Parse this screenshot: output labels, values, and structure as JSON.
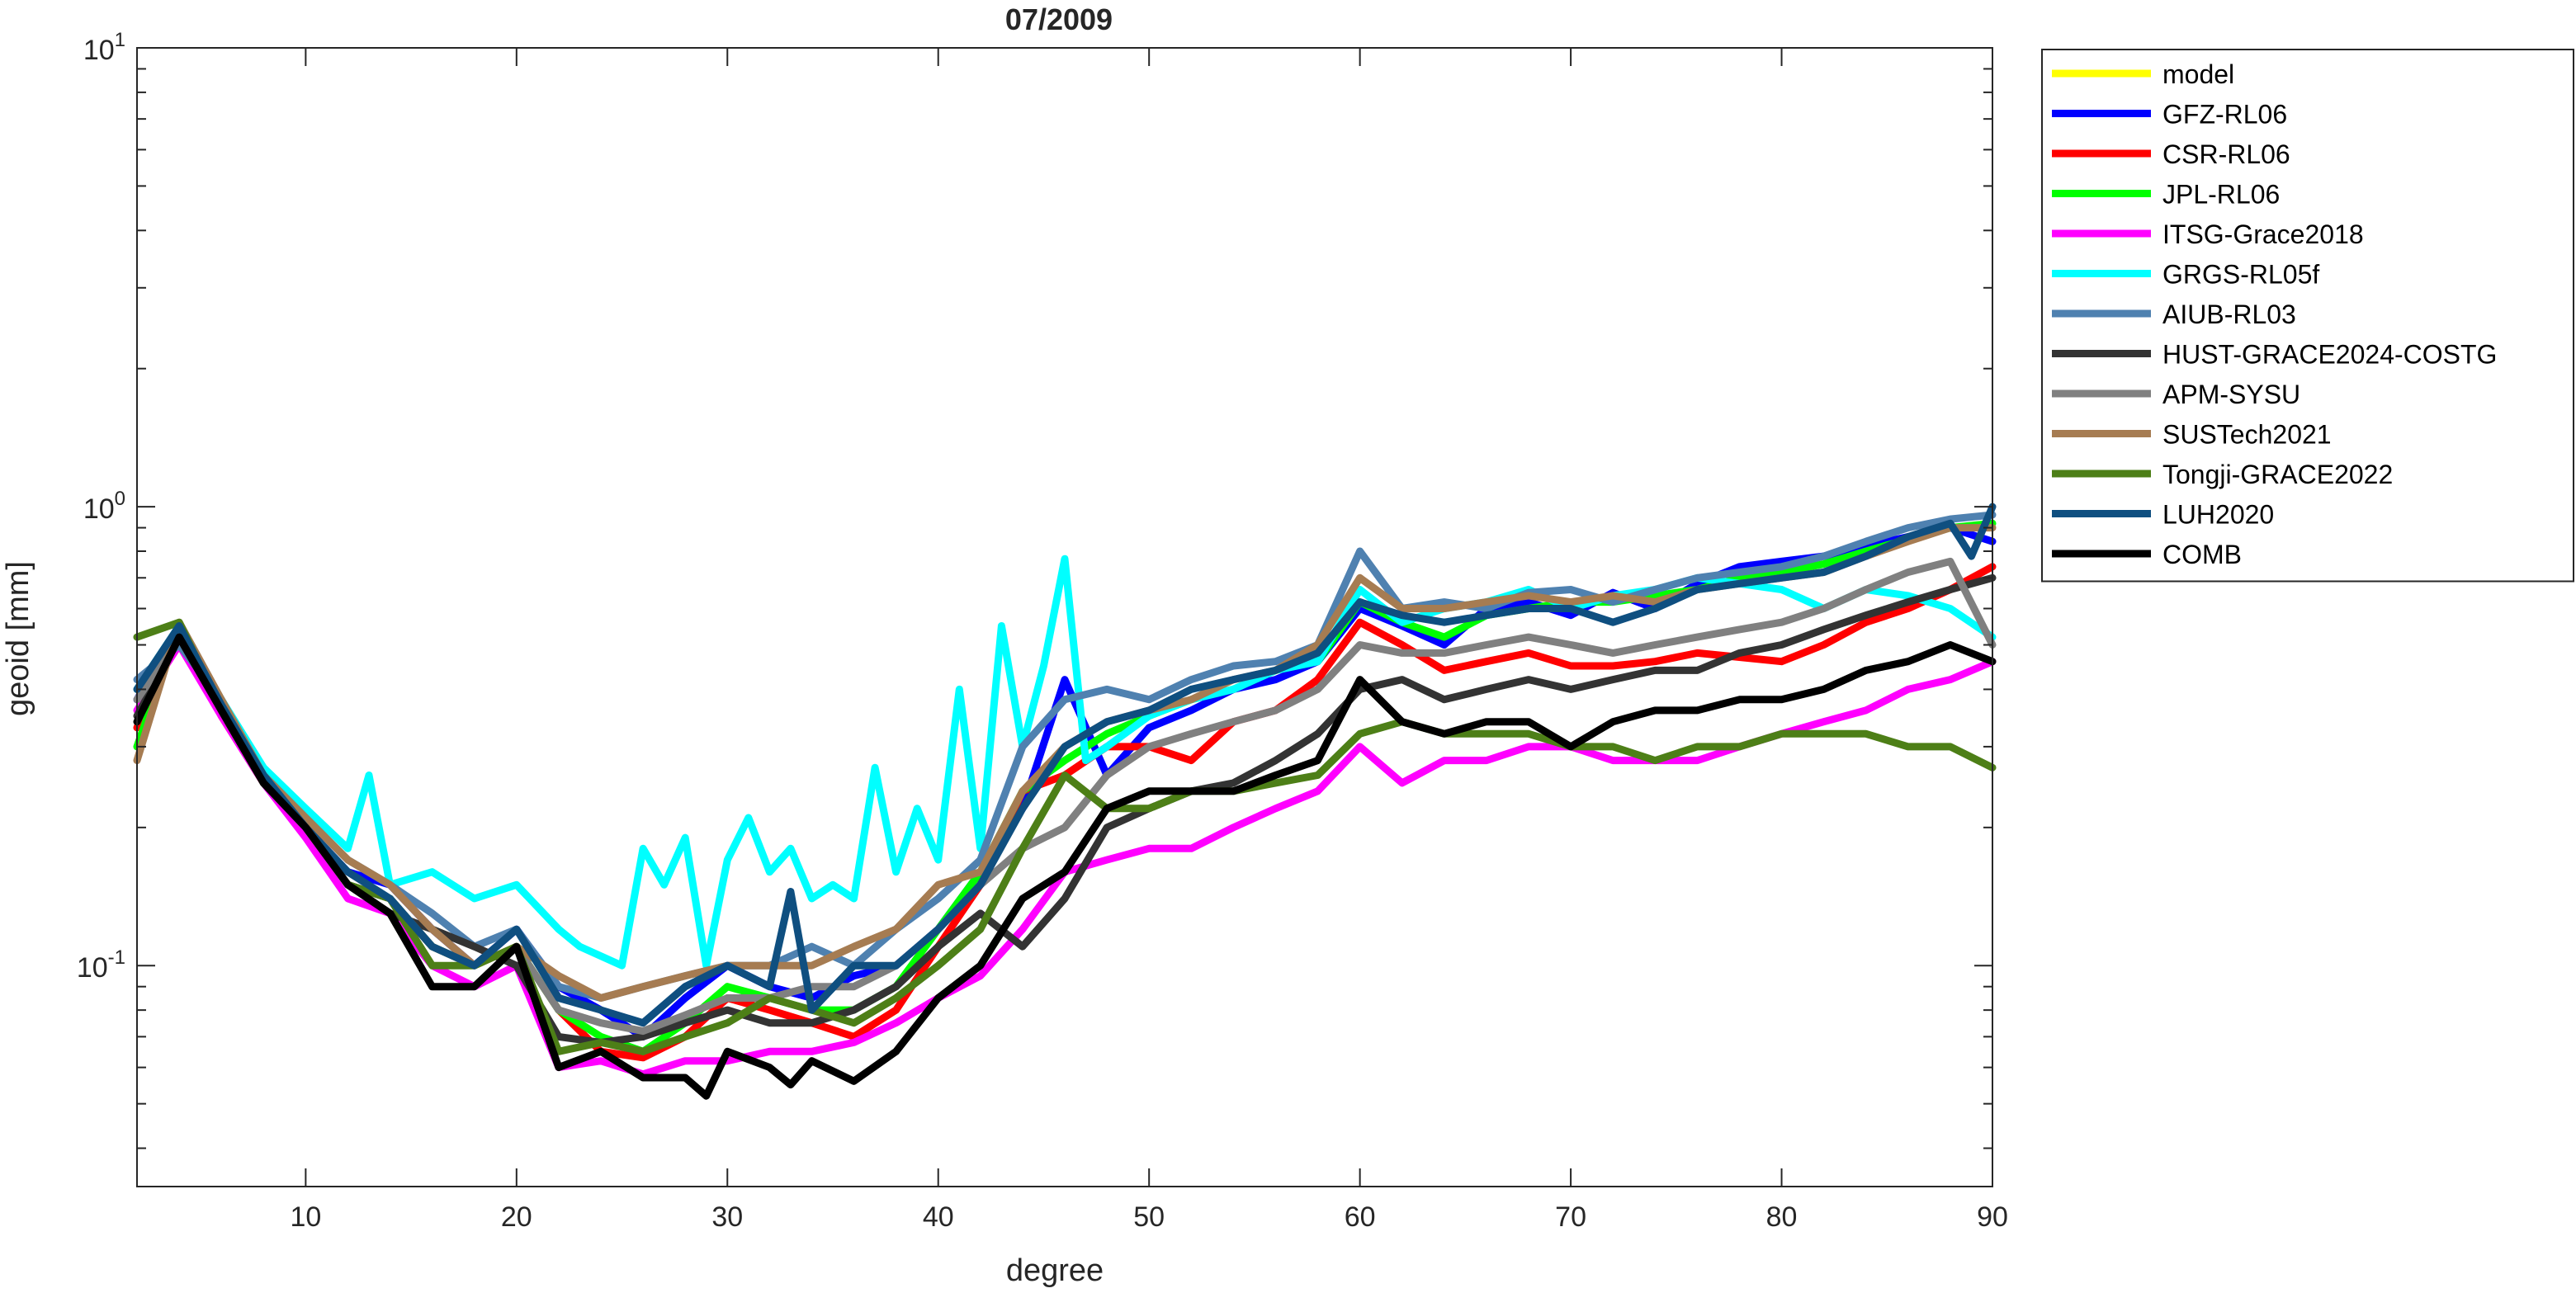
{
  "chart_data": {
    "type": "line",
    "title": "07/2009",
    "xlabel": "degree",
    "ylabel": "geoid [mm]",
    "xlim": [
      2,
      90
    ],
    "ylim": [
      0.033,
      10
    ],
    "yscale": "log",
    "grid": false,
    "legend_position": "outside-top-right",
    "xticks": [
      10,
      20,
      30,
      40,
      50,
      60,
      70,
      80,
      90
    ],
    "yticks": [
      {
        "value": 0.1,
        "base": "10",
        "exp": "-1"
      },
      {
        "value": 1,
        "base": "10",
        "exp": "0"
      },
      {
        "value": 10,
        "base": "10",
        "exp": "1"
      }
    ],
    "series": [
      {
        "name": "model",
        "color": "#FFFF00",
        "x": [],
        "y": []
      },
      {
        "name": "GFZ-RL06",
        "color": "#0000FF",
        "x": [
          2,
          4,
          6,
          8,
          10,
          12,
          14,
          16,
          18,
          20,
          22,
          24,
          26,
          28,
          30,
          32,
          34,
          36,
          38,
          40,
          42,
          44,
          46,
          48,
          50,
          52,
          54,
          56,
          58,
          60,
          62,
          64,
          66,
          68,
          70,
          72,
          74,
          76,
          78,
          80,
          82,
          84,
          86,
          88,
          90
        ],
        "y": [
          0.38,
          0.55,
          0.36,
          0.25,
          0.2,
          0.16,
          0.15,
          0.12,
          0.1,
          0.12,
          0.09,
          0.08,
          0.07,
          0.085,
          0.1,
          0.09,
          0.085,
          0.095,
          0.1,
          0.12,
          0.16,
          0.22,
          0.42,
          0.26,
          0.33,
          0.36,
          0.4,
          0.42,
          0.46,
          0.6,
          0.55,
          0.5,
          0.6,
          0.62,
          0.58,
          0.65,
          0.6,
          0.68,
          0.74,
          0.76,
          0.78,
          0.82,
          0.86,
          0.9,
          0.84
        ]
      },
      {
        "name": "CSR-RL06",
        "color": "#FF0000",
        "x": [
          2,
          4,
          6,
          8,
          10,
          12,
          14,
          16,
          18,
          20,
          22,
          24,
          26,
          28,
          30,
          32,
          34,
          36,
          38,
          40,
          42,
          44,
          46,
          48,
          50,
          52,
          54,
          56,
          58,
          60,
          62,
          64,
          66,
          68,
          70,
          72,
          74,
          76,
          78,
          80,
          82,
          84,
          86,
          88,
          90
        ],
        "y": [
          0.33,
          0.55,
          0.35,
          0.25,
          0.2,
          0.15,
          0.14,
          0.11,
          0.1,
          0.11,
          0.08,
          0.065,
          0.063,
          0.07,
          0.085,
          0.08,
          0.075,
          0.07,
          0.08,
          0.11,
          0.15,
          0.24,
          0.26,
          0.3,
          0.3,
          0.28,
          0.34,
          0.36,
          0.42,
          0.56,
          0.5,
          0.44,
          0.46,
          0.48,
          0.45,
          0.45,
          0.46,
          0.48,
          0.47,
          0.46,
          0.5,
          0.56,
          0.6,
          0.66,
          0.74
        ]
      },
      {
        "name": "JPL-RL06",
        "color": "#00FF00",
        "x": [
          2,
          4,
          6,
          8,
          10,
          12,
          14,
          16,
          18,
          20,
          22,
          24,
          26,
          28,
          30,
          32,
          34,
          36,
          38,
          40,
          42,
          44,
          46,
          48,
          50,
          52,
          54,
          56,
          58,
          60,
          62,
          64,
          66,
          68,
          70,
          72,
          74,
          76,
          78,
          80,
          82,
          84,
          86,
          88,
          90
        ],
        "y": [
          0.3,
          0.55,
          0.36,
          0.25,
          0.2,
          0.15,
          0.14,
          0.11,
          0.1,
          0.11,
          0.08,
          0.07,
          0.065,
          0.075,
          0.09,
          0.085,
          0.08,
          0.08,
          0.09,
          0.12,
          0.16,
          0.24,
          0.28,
          0.32,
          0.35,
          0.38,
          0.4,
          0.44,
          0.46,
          0.62,
          0.56,
          0.52,
          0.58,
          0.6,
          0.62,
          0.62,
          0.64,
          0.66,
          0.7,
          0.72,
          0.75,
          0.8,
          0.85,
          0.9,
          0.92
        ]
      },
      {
        "name": "ITSG-Grace2018",
        "color": "#FF00FF",
        "x": [
          2,
          4,
          6,
          8,
          10,
          12,
          14,
          16,
          18,
          20,
          22,
          24,
          26,
          28,
          30,
          32,
          34,
          36,
          38,
          40,
          42,
          44,
          46,
          48,
          50,
          52,
          54,
          56,
          58,
          60,
          62,
          64,
          66,
          68,
          70,
          72,
          74,
          76,
          78,
          80,
          82,
          84,
          86,
          88,
          90
        ],
        "y": [
          0.36,
          0.5,
          0.35,
          0.25,
          0.19,
          0.14,
          0.13,
          0.1,
          0.09,
          0.1,
          0.06,
          0.062,
          0.058,
          0.062,
          0.062,
          0.065,
          0.065,
          0.068,
          0.075,
          0.085,
          0.095,
          0.12,
          0.16,
          0.17,
          0.18,
          0.18,
          0.2,
          0.22,
          0.24,
          0.3,
          0.25,
          0.28,
          0.28,
          0.3,
          0.3,
          0.28,
          0.28,
          0.28,
          0.3,
          0.32,
          0.34,
          0.36,
          0.4,
          0.42,
          0.46
        ]
      },
      {
        "name": "GRGS-RL05f",
        "color": "#00FFFF",
        "x": [
          2,
          4,
          6,
          8,
          10,
          12,
          13,
          14,
          16,
          18,
          20,
          22,
          23,
          25,
          26,
          27,
          28,
          29,
          30,
          31,
          32,
          33,
          34,
          35,
          36,
          37,
          38,
          39,
          40,
          41,
          42,
          43,
          44,
          45,
          46,
          47,
          48,
          50,
          52,
          54,
          56,
          58,
          60,
          62,
          64,
          66,
          68,
          70,
          72,
          74,
          76,
          78,
          80,
          82,
          84,
          86,
          88,
          90
        ],
        "y": [
          0.4,
          0.55,
          0.38,
          0.27,
          0.22,
          0.18,
          0.26,
          0.15,
          0.16,
          0.14,
          0.15,
          0.12,
          0.11,
          0.1,
          0.18,
          0.15,
          0.19,
          0.1,
          0.17,
          0.21,
          0.16,
          0.18,
          0.14,
          0.15,
          0.14,
          0.27,
          0.16,
          0.22,
          0.17,
          0.4,
          0.18,
          0.55,
          0.3,
          0.45,
          0.77,
          0.28,
          0.3,
          0.35,
          0.38,
          0.4,
          0.44,
          0.46,
          0.66,
          0.56,
          0.6,
          0.62,
          0.66,
          0.6,
          0.64,
          0.66,
          0.7,
          0.68,
          0.66,
          0.6,
          0.66,
          0.64,
          0.6,
          0.52
        ]
      },
      {
        "name": "AIUB-RL03",
        "color": "#4F81B0",
        "x": [
          2,
          4,
          6,
          8,
          10,
          12,
          14,
          16,
          18,
          20,
          22,
          24,
          26,
          28,
          30,
          32,
          34,
          36,
          38,
          40,
          42,
          44,
          46,
          48,
          50,
          52,
          54,
          56,
          58,
          60,
          62,
          64,
          66,
          68,
          70,
          72,
          74,
          76,
          78,
          80,
          82,
          84,
          86,
          88,
          90
        ],
        "y": [
          0.42,
          0.5,
          0.38,
          0.26,
          0.21,
          0.17,
          0.15,
          0.13,
          0.11,
          0.12,
          0.09,
          0.085,
          0.09,
          0.095,
          0.1,
          0.1,
          0.11,
          0.1,
          0.12,
          0.14,
          0.17,
          0.3,
          0.38,
          0.4,
          0.38,
          0.42,
          0.45,
          0.46,
          0.5,
          0.8,
          0.6,
          0.62,
          0.6,
          0.65,
          0.66,
          0.62,
          0.66,
          0.7,
          0.72,
          0.74,
          0.78,
          0.84,
          0.9,
          0.94,
          0.96
        ]
      },
      {
        "name": "HUST-GRACE2024-COSTG",
        "color": "#333333",
        "x": [
          2,
          4,
          6,
          8,
          10,
          12,
          14,
          16,
          18,
          20,
          22,
          24,
          26,
          28,
          30,
          32,
          34,
          36,
          38,
          40,
          42,
          44,
          46,
          48,
          50,
          52,
          54,
          56,
          58,
          60,
          62,
          64,
          66,
          68,
          70,
          72,
          74,
          76,
          78,
          80,
          82,
          84,
          86,
          88,
          90
        ],
        "y": [
          0.35,
          0.52,
          0.36,
          0.25,
          0.2,
          0.15,
          0.13,
          0.12,
          0.11,
          0.1,
          0.07,
          0.068,
          0.07,
          0.075,
          0.08,
          0.075,
          0.075,
          0.08,
          0.09,
          0.11,
          0.13,
          0.11,
          0.14,
          0.2,
          0.22,
          0.24,
          0.25,
          0.28,
          0.32,
          0.4,
          0.42,
          0.38,
          0.4,
          0.42,
          0.4,
          0.42,
          0.44,
          0.44,
          0.48,
          0.5,
          0.54,
          0.58,
          0.62,
          0.66,
          0.7
        ]
      },
      {
        "name": "APM-SYSU",
        "color": "#808080",
        "x": [
          2,
          4,
          6,
          8,
          10,
          12,
          14,
          16,
          18,
          20,
          22,
          24,
          26,
          28,
          30,
          32,
          34,
          36,
          38,
          40,
          42,
          44,
          46,
          48,
          50,
          52,
          54,
          56,
          58,
          60,
          62,
          64,
          66,
          68,
          70,
          72,
          74,
          76,
          78,
          80,
          82,
          84,
          86,
          88,
          90
        ],
        "y": [
          0.38,
          0.52,
          0.36,
          0.26,
          0.2,
          0.15,
          0.14,
          0.11,
          0.1,
          0.11,
          0.08,
          0.075,
          0.072,
          0.078,
          0.085,
          0.085,
          0.09,
          0.09,
          0.1,
          0.12,
          0.15,
          0.18,
          0.2,
          0.26,
          0.3,
          0.32,
          0.34,
          0.36,
          0.4,
          0.5,
          0.48,
          0.48,
          0.5,
          0.52,
          0.5,
          0.48,
          0.5,
          0.52,
          0.54,
          0.56,
          0.6,
          0.66,
          0.72,
          0.76,
          0.5
        ]
      },
      {
        "name": "SUSTech2021",
        "color": "#A67C52",
        "x": [
          2,
          4,
          6,
          8,
          10,
          12,
          14,
          16,
          18,
          20,
          22,
          24,
          26,
          28,
          30,
          32,
          34,
          36,
          38,
          40,
          42,
          44,
          46,
          48,
          50,
          52,
          54,
          56,
          58,
          60,
          62,
          64,
          66,
          68,
          70,
          72,
          74,
          76,
          78,
          80,
          82,
          84,
          86,
          88,
          90
        ],
        "y": [
          0.28,
          0.56,
          0.38,
          0.26,
          0.21,
          0.17,
          0.15,
          0.12,
          0.1,
          0.11,
          0.095,
          0.085,
          0.09,
          0.095,
          0.1,
          0.1,
          0.1,
          0.11,
          0.12,
          0.15,
          0.16,
          0.24,
          0.3,
          0.34,
          0.36,
          0.38,
          0.42,
          0.44,
          0.5,
          0.7,
          0.6,
          0.6,
          0.62,
          0.64,
          0.62,
          0.64,
          0.62,
          0.66,
          0.68,
          0.7,
          0.72,
          0.78,
          0.84,
          0.9,
          0.9
        ]
      },
      {
        "name": "Tongji-GRACE2022",
        "color": "#4D7F17",
        "x": [
          2,
          4,
          6,
          8,
          10,
          12,
          14,
          16,
          18,
          20,
          22,
          24,
          26,
          28,
          30,
          32,
          34,
          36,
          38,
          40,
          42,
          44,
          46,
          48,
          50,
          52,
          54,
          56,
          58,
          60,
          62,
          64,
          66,
          68,
          70,
          72,
          74,
          76,
          78,
          80,
          82,
          84,
          86,
          88,
          90
        ],
        "y": [
          0.52,
          0.56,
          0.36,
          0.25,
          0.2,
          0.15,
          0.14,
          0.1,
          0.1,
          0.11,
          0.065,
          0.068,
          0.065,
          0.07,
          0.075,
          0.085,
          0.08,
          0.075,
          0.085,
          0.1,
          0.12,
          0.18,
          0.26,
          0.22,
          0.22,
          0.24,
          0.24,
          0.25,
          0.26,
          0.32,
          0.34,
          0.32,
          0.32,
          0.32,
          0.3,
          0.3,
          0.28,
          0.3,
          0.3,
          0.32,
          0.32,
          0.32,
          0.3,
          0.3,
          0.27
        ]
      },
      {
        "name": "LUH2020",
        "color": "#0F4F80",
        "x": [
          2,
          4,
          6,
          8,
          10,
          12,
          14,
          16,
          18,
          20,
          22,
          24,
          26,
          28,
          30,
          32,
          33,
          34,
          36,
          38,
          40,
          42,
          44,
          46,
          48,
          50,
          52,
          54,
          56,
          58,
          60,
          62,
          64,
          66,
          68,
          70,
          72,
          74,
          76,
          78,
          80,
          82,
          84,
          86,
          88,
          89,
          90
        ],
        "y": [
          0.4,
          0.55,
          0.37,
          0.26,
          0.2,
          0.16,
          0.14,
          0.11,
          0.1,
          0.12,
          0.085,
          0.08,
          0.075,
          0.09,
          0.1,
          0.09,
          0.145,
          0.08,
          0.1,
          0.1,
          0.12,
          0.15,
          0.22,
          0.3,
          0.34,
          0.36,
          0.4,
          0.42,
          0.44,
          0.48,
          0.62,
          0.58,
          0.56,
          0.58,
          0.6,
          0.6,
          0.56,
          0.6,
          0.66,
          0.68,
          0.7,
          0.72,
          0.78,
          0.86,
          0.92,
          0.78,
          1.0
        ]
      },
      {
        "name": "COMB",
        "color": "#000000",
        "x": [
          2,
          4,
          6,
          8,
          10,
          12,
          14,
          16,
          18,
          20,
          22,
          24,
          26,
          28,
          29,
          30,
          32,
          33,
          34,
          36,
          38,
          40,
          42,
          44,
          46,
          48,
          50,
          52,
          54,
          56,
          58,
          60,
          62,
          64,
          66,
          68,
          70,
          72,
          74,
          76,
          78,
          80,
          82,
          84,
          86,
          88,
          90
        ],
        "y": [
          0.34,
          0.52,
          0.36,
          0.25,
          0.2,
          0.15,
          0.13,
          0.09,
          0.09,
          0.11,
          0.06,
          0.065,
          0.057,
          0.057,
          0.052,
          0.065,
          0.06,
          0.055,
          0.062,
          0.056,
          0.065,
          0.085,
          0.1,
          0.14,
          0.16,
          0.22,
          0.24,
          0.24,
          0.24,
          0.26,
          0.28,
          0.42,
          0.34,
          0.32,
          0.34,
          0.34,
          0.3,
          0.34,
          0.36,
          0.36,
          0.38,
          0.38,
          0.4,
          0.44,
          0.46,
          0.5,
          0.46
        ]
      }
    ]
  }
}
